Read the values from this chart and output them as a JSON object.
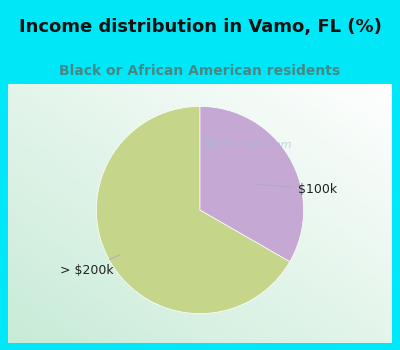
{
  "title": "Income distribution in Vamo, FL (%)",
  "subtitle": "Black or African American residents",
  "slices": [
    0.667,
    0.333
  ],
  "labels": [
    "> $200k",
    "$100k"
  ],
  "colors": [
    "#c5d68a",
    "#c5a8d4"
  ],
  "background_cyan": "#00e8f8",
  "chart_bg_color": "#e8f5ee",
  "title_fontsize": 13,
  "subtitle_fontsize": 10,
  "label_fontsize": 9,
  "watermark": "City-Data.com",
  "start_angle": 90
}
